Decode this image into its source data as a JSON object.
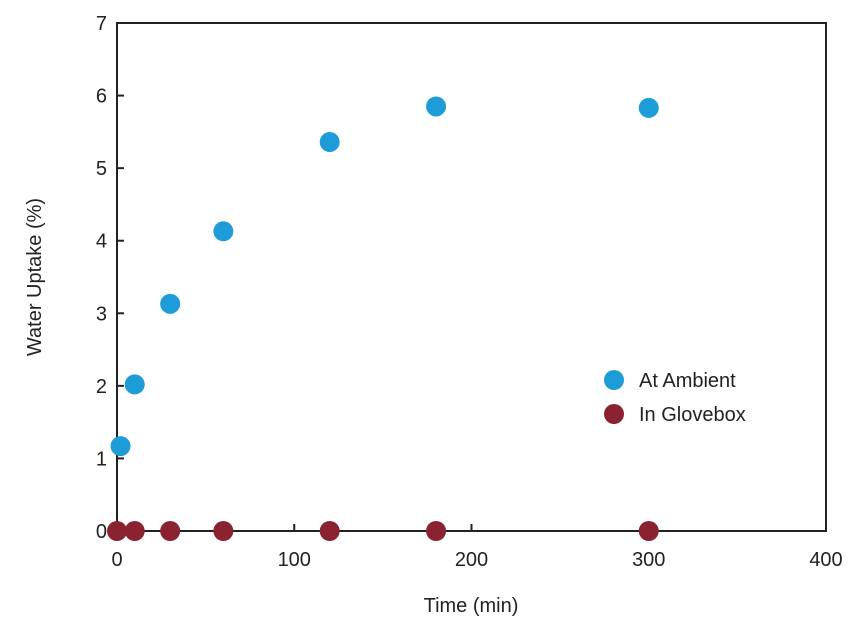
{
  "chart_data": {
    "type": "scatter",
    "title": "",
    "xlabel": "Time (min)",
    "ylabel": "Water Uptake (%)",
    "xlim": [
      0,
      400
    ],
    "ylim": [
      0,
      7
    ],
    "x_ticks": [
      0,
      100,
      200,
      300,
      400
    ],
    "y_ticks": [
      0,
      1,
      2,
      3,
      4,
      5,
      6,
      7
    ],
    "grid": false,
    "legend_position": "right",
    "series": [
      {
        "name": "At Ambient",
        "color": "#1e9cd7",
        "points": [
          {
            "x": 2,
            "y": 1.17
          },
          {
            "x": 10,
            "y": 2.02
          },
          {
            "x": 30,
            "y": 3.13
          },
          {
            "x": 60,
            "y": 4.13
          },
          {
            "x": 120,
            "y": 5.36
          },
          {
            "x": 180,
            "y": 5.85
          },
          {
            "x": 300,
            "y": 5.83
          }
        ]
      },
      {
        "name": "In Glovebox",
        "color": "#8b2232",
        "points": [
          {
            "x": 0,
            "y": 0
          },
          {
            "x": 10,
            "y": 0
          },
          {
            "x": 30,
            "y": 0
          },
          {
            "x": 60,
            "y": 0
          },
          {
            "x": 120,
            "y": 0
          },
          {
            "x": 180,
            "y": 0
          },
          {
            "x": 300,
            "y": 0
          }
        ]
      }
    ]
  }
}
